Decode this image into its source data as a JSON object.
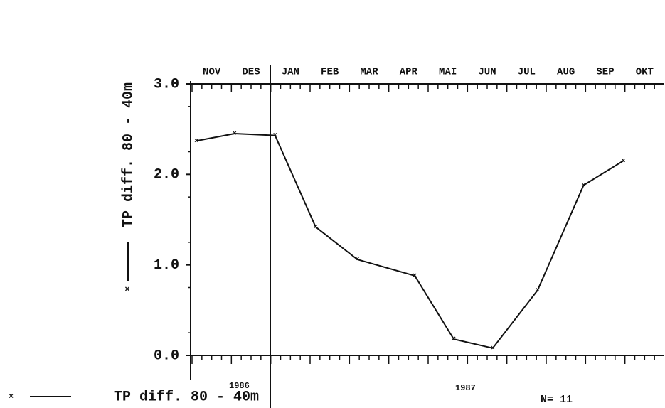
{
  "chart_data": {
    "type": "line",
    "y_label": "TP diff. 80 - 40m",
    "months": [
      "NOV",
      "DES",
      "JAN",
      "FEB",
      "MAR",
      "APR",
      "MAI",
      "JUN",
      "JUL",
      "AUG",
      "SEP",
      "OKT"
    ],
    "years": [
      "1986",
      "1987"
    ],
    "annotation": "N= 11",
    "xlim": [
      0,
      12
    ],
    "ylim": [
      0,
      3
    ],
    "yticks": [
      {
        "value": 0,
        "label": "0.0"
      },
      {
        "value": 1,
        "label": "1.0"
      },
      {
        "value": 2,
        "label": "2.0"
      },
      {
        "value": 3,
        "label": "3.0"
      }
    ],
    "series": [
      {
        "name": "TP diff. 80 - 40m",
        "color": "#111111",
        "x": [
          0.11,
          1.08,
          2.11,
          3.14,
          4.2,
          5.66,
          6.65,
          7.64,
          8.78,
          9.95,
          10.96
        ],
        "values": [
          2.37,
          2.45,
          2.43,
          1.42,
          1.06,
          0.88,
          0.18,
          0.08,
          0.72,
          1.88,
          2.15
        ]
      }
    ]
  }
}
